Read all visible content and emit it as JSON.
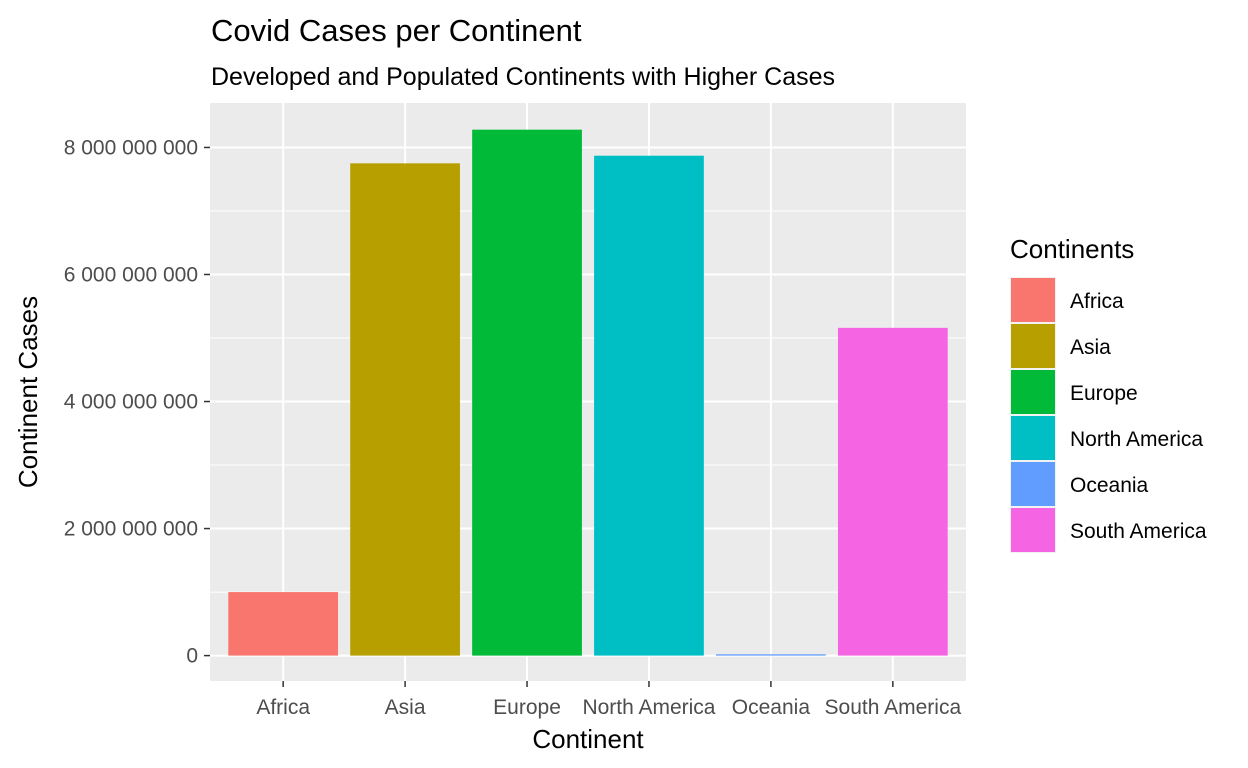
{
  "chart_data": {
    "type": "bar",
    "title": "Covid Cases per Continent",
    "subtitle": "Developed and Populated Continents with Higher Cases",
    "xlabel": "Continent",
    "ylabel": "Continent Cases",
    "categories": [
      "Africa",
      "Asia",
      "Europe",
      "North America",
      "Oceania",
      "South America"
    ],
    "values": [
      1000000000,
      7750000000,
      8280000000,
      7870000000,
      20000000,
      5160000000
    ],
    "colors": [
      "#F8766D",
      "#B79F00",
      "#00BA38",
      "#00BFC4",
      "#619CFF",
      "#F564E3"
    ],
    "ylim": [
      -400000000,
      8700000000
    ],
    "y_ticks": [
      0,
      2000000000,
      4000000000,
      6000000000,
      8000000000
    ],
    "y_tick_labels": [
      "0",
      "2 000 000 000",
      "4 000 000 000",
      "6 000 000 000",
      "8 000 000 000"
    ],
    "grid": true,
    "legend": {
      "title": "Continents",
      "position": "right",
      "entries": [
        "Africa",
        "Asia",
        "Europe",
        "North America",
        "Oceania",
        "South America"
      ]
    }
  }
}
